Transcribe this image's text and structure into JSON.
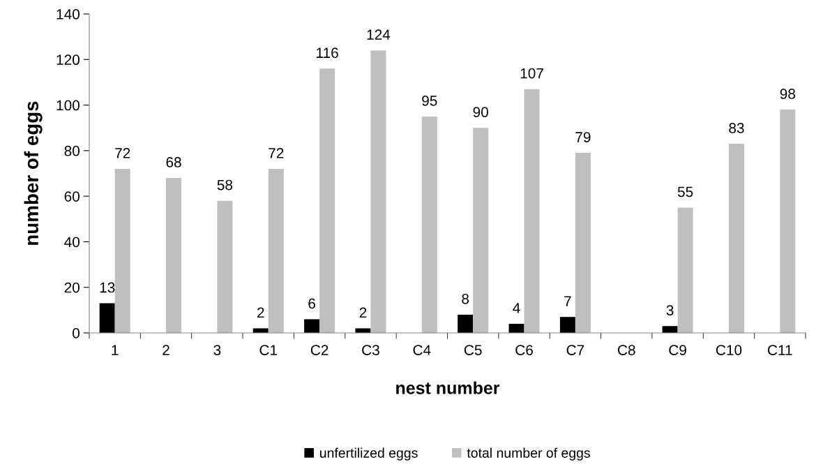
{
  "chart_data": {
    "type": "bar",
    "xlabel": "nest number",
    "ylabel": "number of eggs",
    "categories": [
      "1",
      "2",
      "3",
      "C1",
      "C2",
      "C3",
      "C4",
      "C5",
      "C6",
      "C7",
      "C8",
      "C9",
      "C10",
      "C11"
    ],
    "series": [
      {
        "name": "unfertilized eggs",
        "color": "#000000",
        "values": [
          13,
          null,
          null,
          2,
          6,
          2,
          null,
          8,
          4,
          7,
          null,
          3,
          null,
          null
        ]
      },
      {
        "name": "total number of eggs",
        "color": "#bfbfbf",
        "values": [
          72,
          68,
          58,
          72,
          116,
          124,
          95,
          90,
          107,
          79,
          null,
          55,
          83,
          98
        ]
      }
    ],
    "ylim": [
      0,
      140
    ],
    "yticks": [
      0,
      20,
      40,
      60,
      80,
      100,
      120,
      140
    ],
    "data_labels": true,
    "grid": false,
    "legend": "bottom"
  }
}
